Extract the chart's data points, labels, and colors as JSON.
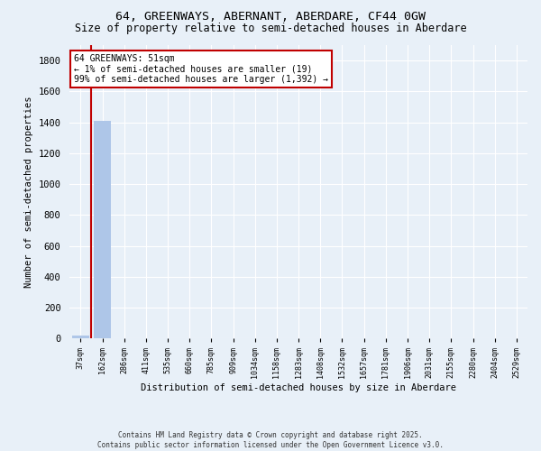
{
  "title": "64, GREENWAYS, ABERNANT, ABERDARE, CF44 0GW",
  "subtitle": "Size of property relative to semi-detached houses in Aberdare",
  "xlabel": "Distribution of semi-detached houses by size in Aberdare",
  "ylabel": "Number of semi-detached properties",
  "categories": [
    "37sqm",
    "162sqm",
    "286sqm",
    "411sqm",
    "535sqm",
    "660sqm",
    "785sqm",
    "909sqm",
    "1034sqm",
    "1158sqm",
    "1283sqm",
    "1408sqm",
    "1532sqm",
    "1657sqm",
    "1781sqm",
    "1906sqm",
    "2031sqm",
    "2155sqm",
    "2280sqm",
    "2404sqm",
    "2529sqm"
  ],
  "values": [
    19,
    1411,
    0,
    0,
    0,
    0,
    0,
    0,
    0,
    0,
    0,
    0,
    0,
    0,
    0,
    0,
    0,
    0,
    0,
    0,
    0
  ],
  "highlight_color": "#c00000",
  "bar_color": "#aec6e8",
  "annotation_title": "64 GREENWAYS: 51sqm",
  "annotation_line1": "← 1% of semi-detached houses are smaller (19)",
  "annotation_line2": "99% of semi-detached houses are larger (1,392) →",
  "ylim": [
    0,
    1900
  ],
  "yticks": [
    0,
    200,
    400,
    600,
    800,
    1000,
    1200,
    1400,
    1600,
    1800
  ],
  "footer1": "Contains HM Land Registry data © Crown copyright and database right 2025.",
  "footer2": "Contains public sector information licensed under the Open Government Licence v3.0.",
  "bg_color": "#e8f0f8",
  "plot_bg_color": "#e8f0f8",
  "grid_color": "#ffffff",
  "title_fontsize": 9.5,
  "subtitle_fontsize": 8.5
}
